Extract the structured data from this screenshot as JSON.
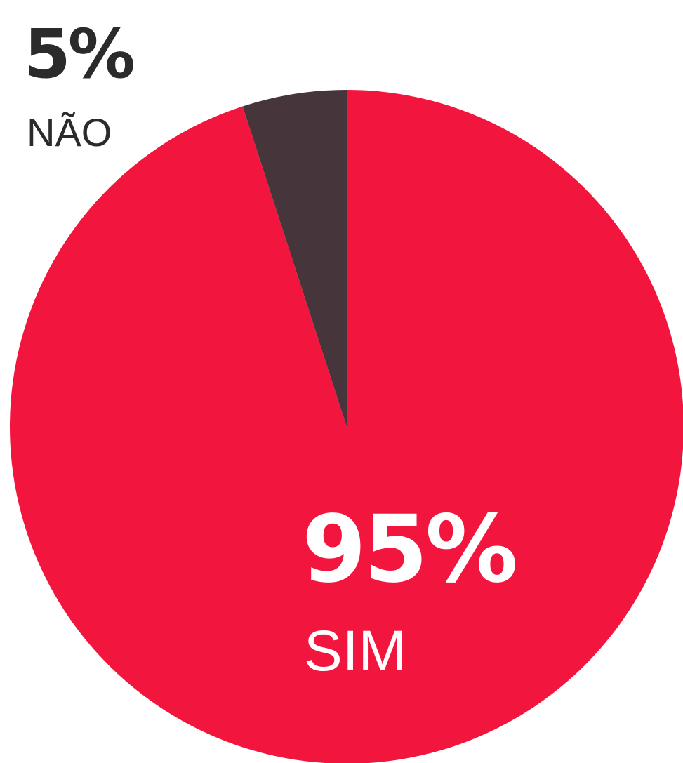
{
  "chart_data": {
    "type": "pie",
    "categories": [
      "SIM",
      "NÃO"
    ],
    "values": [
      95,
      5
    ],
    "value_labels": [
      "95%",
      "5%"
    ],
    "colors": [
      "#f2163e",
      "#46353b"
    ]
  }
}
